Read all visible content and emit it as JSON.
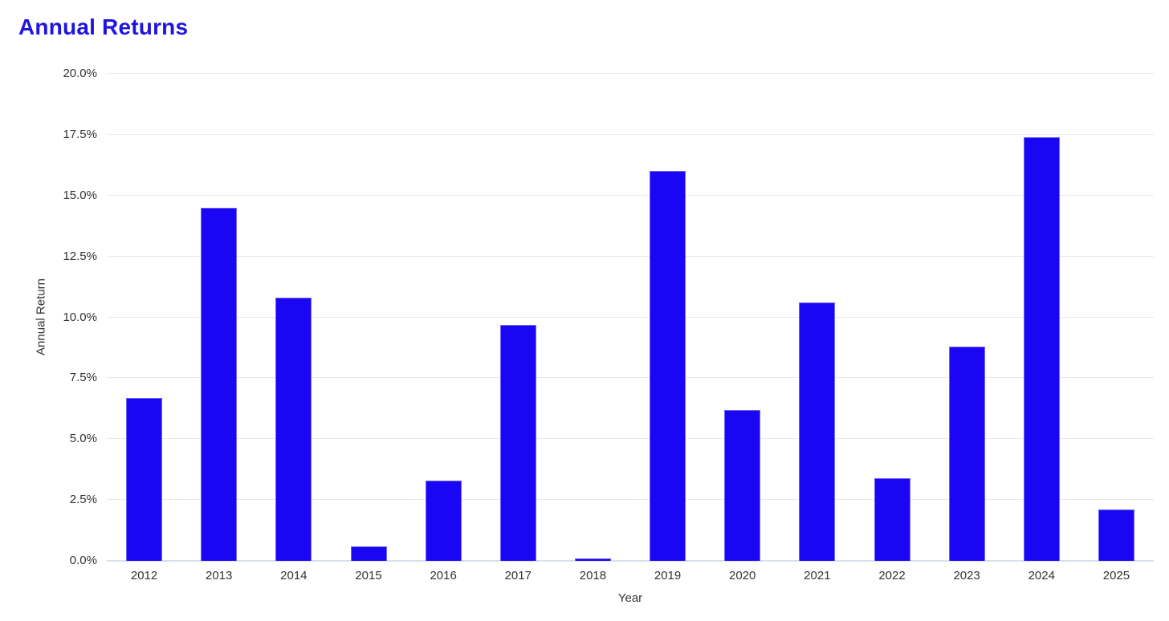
{
  "chart_data": {
    "type": "bar",
    "title": "Annual Returns",
    "categories": [
      "2012",
      "2013",
      "2014",
      "2015",
      "2016",
      "2017",
      "2018",
      "2019",
      "2020",
      "2021",
      "2022",
      "2023",
      "2024",
      "2025"
    ],
    "values": [
      6.7,
      14.5,
      10.8,
      0.6,
      3.3,
      9.7,
      0.1,
      16.0,
      6.2,
      10.6,
      3.4,
      8.8,
      17.4,
      2.1
    ],
    "value_unit": "%",
    "xlabel": "Year",
    "ylabel": "Annual Return",
    "ylim": [
      0,
      20
    ],
    "ytick_step": 2.5,
    "ytick_labels": [
      "0.0%",
      "2.5%",
      "5.0%",
      "7.5%",
      "10.0%",
      "12.5%",
      "15.0%",
      "17.5%",
      "20.0%"
    ],
    "grid": true,
    "legend": "none",
    "colors": {
      "bar_fill": "#1a06f2",
      "bar_edge": "#6e66f7",
      "title_text": "#1f14e0",
      "tick_text": "#333333",
      "gridline": "#e9e9e9",
      "axis_line": "#d8deee",
      "background": "#ffffff"
    }
  }
}
